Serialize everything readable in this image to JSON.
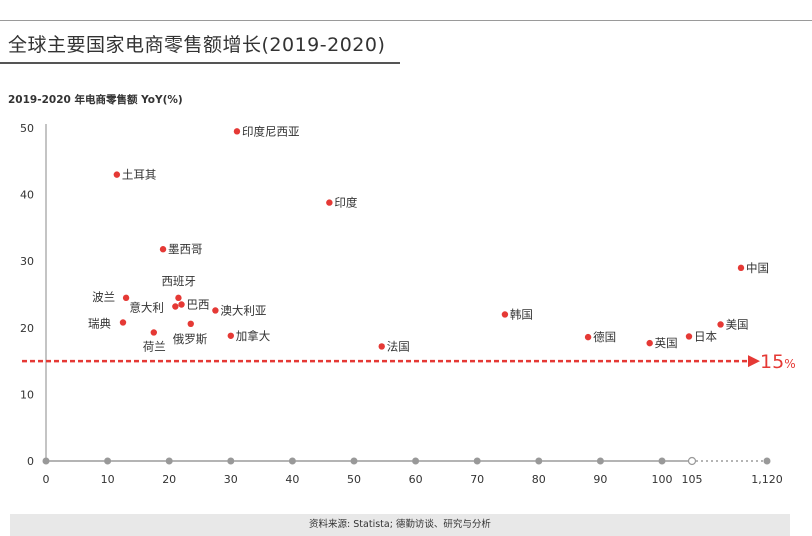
{
  "title": "全球主要国家电商零售额增长(2019-2020)",
  "footer": {
    "source": "资料来源: Statista; 德勤访谈、研究与分析"
  },
  "threshold_label": "15%",
  "colors": {
    "point": "#e53935",
    "threshold": "#e53935",
    "axis": "#888888",
    "grid_tick": "#999999",
    "text": "#333333"
  },
  "chart_data": {
    "type": "scatter",
    "title": "全球主要国家电商零售额增长(2019-2020)",
    "ylabel": "2019-2020 年电商零售额 YoY(%)",
    "xlabel": "",
    "ylim": [
      0,
      50
    ],
    "yticks": [
      0,
      10,
      20,
      30,
      40,
      50
    ],
    "xticks": [
      "0",
      "10",
      "20",
      "30",
      "40",
      "50",
      "60",
      "70",
      "80",
      "90",
      "100",
      "105",
      "1,120"
    ],
    "x_axis_break": "105 … 1,120",
    "grid": false,
    "reference_line": {
      "y": 15,
      "label": "15%",
      "style": "dashed-arrow"
    },
    "points": [
      {
        "label": "印度尼西亚",
        "x": 31,
        "y": 49.5
      },
      {
        "label": "土耳其",
        "x": 11.5,
        "y": 43
      },
      {
        "label": "印度",
        "x": 46,
        "y": 38.8
      },
      {
        "label": "墨西哥",
        "x": 19,
        "y": 31.8
      },
      {
        "label": "中国",
        "x": 1092,
        "y": 29
      },
      {
        "label": "波兰",
        "x": 13,
        "y": 24.5
      },
      {
        "label": "西班牙",
        "x": 21.5,
        "y": 24.5
      },
      {
        "label": "巴西",
        "x": 22,
        "y": 23.5
      },
      {
        "label": "意大利",
        "x": 21,
        "y": 23.2
      },
      {
        "label": "澳大利亚",
        "x": 27.5,
        "y": 22.6
      },
      {
        "label": "韩国",
        "x": 74.5,
        "y": 22
      },
      {
        "label": "瑞典",
        "x": 12.5,
        "y": 20.8
      },
      {
        "label": "俄罗斯",
        "x": 23.5,
        "y": 20.6
      },
      {
        "label": "美国",
        "x": 1070,
        "y": 20.5
      },
      {
        "label": "荷兰",
        "x": 17.5,
        "y": 19.3
      },
      {
        "label": "加拿大",
        "x": 30,
        "y": 18.8
      },
      {
        "label": "日本",
        "x": 104.5,
        "y": 18.7
      },
      {
        "label": "德国",
        "x": 88,
        "y": 18.6
      },
      {
        "label": "英国",
        "x": 98,
        "y": 17.7
      },
      {
        "label": "法国",
        "x": 54.5,
        "y": 17.2
      }
    ]
  }
}
